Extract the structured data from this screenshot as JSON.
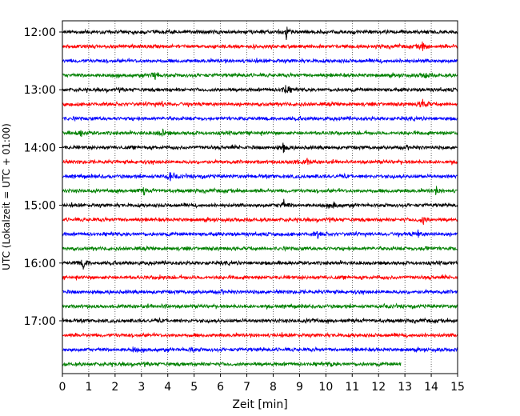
{
  "chart_data": {
    "type": "line",
    "title": "",
    "xlabel": "Zeit  [min]",
    "ylabel": "UTC (Lokalzeit = UTC + 01:00)",
    "xlim": [
      0,
      15
    ],
    "x_ticks": [
      "0",
      "1",
      "2",
      "3",
      "4",
      "5",
      "6",
      "7",
      "8",
      "9",
      "10",
      "11",
      "12",
      "13",
      "14",
      "15"
    ],
    "y_ticks": [
      "12:00",
      "13:00",
      "14:00",
      "15:00",
      "16:00",
      "17:00"
    ],
    "grid": "vertical dotted lines at every minute",
    "trace_interval_min": 15,
    "trace_colors": [
      "#000000",
      "#ff0000",
      "#0000ff",
      "#008000"
    ],
    "series": [
      {
        "start": "12:00",
        "color": "#000000",
        "end_min": 15,
        "events": [
          {
            "x": 8.5,
            "amp": 1.0
          }
        ]
      },
      {
        "start": "12:15",
        "color": "#ff0000",
        "end_min": 15,
        "events": [
          {
            "x": 13.7,
            "amp": 0.8
          }
        ]
      },
      {
        "start": "12:30",
        "color": "#0000ff",
        "end_min": 15,
        "events": []
      },
      {
        "start": "12:45",
        "color": "#008000",
        "end_min": 15,
        "events": [
          {
            "x": 3.5,
            "amp": 0.8
          },
          {
            "x": 13.8,
            "amp": 0.5
          }
        ]
      },
      {
        "start": "13:00",
        "color": "#000000",
        "end_min": 15,
        "events": [
          {
            "x": 8.5,
            "amp": 0.9
          }
        ]
      },
      {
        "start": "13:15",
        "color": "#ff0000",
        "end_min": 15,
        "events": [
          {
            "x": 13.7,
            "amp": 0.9
          },
          {
            "x": 3.8,
            "amp": 0.4
          }
        ]
      },
      {
        "start": "13:30",
        "color": "#0000ff",
        "end_min": 15,
        "events": []
      },
      {
        "start": "13:45",
        "color": "#008000",
        "end_min": 15,
        "events": [
          {
            "x": 0.7,
            "amp": 0.6
          },
          {
            "x": 3.8,
            "amp": 0.7
          }
        ]
      },
      {
        "start": "14:00",
        "color": "#000000",
        "end_min": 15,
        "events": [
          {
            "x": 8.4,
            "amp": 0.8
          }
        ]
      },
      {
        "start": "14:15",
        "color": "#ff0000",
        "end_min": 15,
        "events": [
          {
            "x": 8.8,
            "amp": 0.5
          },
          {
            "x": 9.3,
            "amp": 0.4
          }
        ]
      },
      {
        "start": "14:30",
        "color": "#0000ff",
        "end_min": 15,
        "events": [
          {
            "x": 4.1,
            "amp": 0.7
          }
        ]
      },
      {
        "start": "14:45",
        "color": "#008000",
        "end_min": 15,
        "events": [
          {
            "x": 3.1,
            "amp": 0.5
          },
          {
            "x": 14.2,
            "amp": 0.6
          }
        ]
      },
      {
        "start": "15:00",
        "color": "#000000",
        "end_min": 15,
        "events": [
          {
            "x": 8.4,
            "amp": 0.8
          },
          {
            "x": 10.3,
            "amp": 0.5
          }
        ]
      },
      {
        "start": "15:15",
        "color": "#ff0000",
        "end_min": 15,
        "events": [
          {
            "x": 13.7,
            "amp": 0.7
          }
        ]
      },
      {
        "start": "15:30",
        "color": "#0000ff",
        "end_min": 15,
        "events": [
          {
            "x": 9.7,
            "amp": 0.5
          },
          {
            "x": 13.5,
            "amp": 0.5
          }
        ]
      },
      {
        "start": "15:45",
        "color": "#008000",
        "end_min": 15,
        "events": [
          {
            "x": 13.8,
            "amp": 0.4
          }
        ]
      },
      {
        "start": "16:00",
        "color": "#000000",
        "end_min": 15,
        "events": [
          {
            "x": 0.8,
            "amp": 0.9
          }
        ]
      },
      {
        "start": "16:15",
        "color": "#ff0000",
        "end_min": 15,
        "events": [
          {
            "x": 3.7,
            "amp": 0.4
          }
        ]
      },
      {
        "start": "16:30",
        "color": "#0000ff",
        "end_min": 15,
        "events": []
      },
      {
        "start": "16:45",
        "color": "#008000",
        "end_min": 15,
        "events": [
          {
            "x": 3.9,
            "amp": 0.3
          }
        ]
      },
      {
        "start": "17:00",
        "color": "#000000",
        "end_min": 15,
        "events": [
          {
            "x": 9.5,
            "amp": 0.3
          }
        ]
      },
      {
        "start": "17:15",
        "color": "#ff0000",
        "end_min": 15,
        "events": []
      },
      {
        "start": "17:30",
        "color": "#0000ff",
        "end_min": 15,
        "events": [
          {
            "x": 2.7,
            "amp": 0.4
          },
          {
            "x": 4.9,
            "amp": 0.3
          }
        ]
      },
      {
        "start": "17:45",
        "color": "#008000",
        "end_min": 12.85,
        "events": [
          {
            "x": 10.2,
            "amp": 0.3
          }
        ]
      }
    ]
  }
}
